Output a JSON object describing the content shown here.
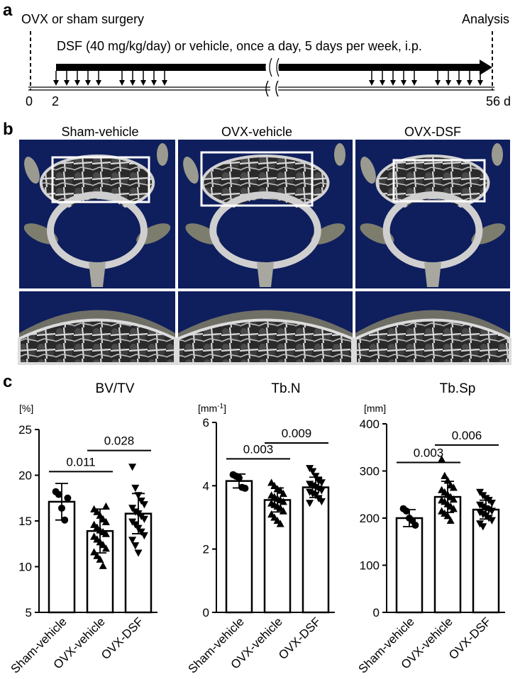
{
  "panels": {
    "a": "a",
    "b": "b",
    "c": "c"
  },
  "timeline": {
    "start_label": "OVX or sham surgery",
    "end_label": "Analysis",
    "treatment_label": "DSF (40 mg/kg/day) or vehicle, once a day, 5 days per week, i.p.",
    "tick_0": "0",
    "tick_2": "2",
    "tick_end": "56 d",
    "day_start": 0,
    "day_treat": 2,
    "day_end": 56
  },
  "images": {
    "groups": [
      "Sham-vehicle",
      "OVX-vehicle",
      "OVX-DSF"
    ],
    "background": "#0f1e5c",
    "bone_color": "#c8c8c8"
  },
  "colors": {
    "ink": "#000000",
    "bar_fill": "#ffffff"
  },
  "chart_data": [
    {
      "type": "bar",
      "title": "BV/TV",
      "unit": "[%]",
      "categories": [
        "Sham-vehicle",
        "OVX-vehicle",
        "OVX-DSF"
      ],
      "markers": [
        "circle",
        "triangle-up",
        "triangle-down"
      ],
      "values": [
        17.1,
        13.9,
        15.8
      ],
      "sd": [
        2.0,
        2.4,
        2.2
      ],
      "ylim": [
        5,
        25
      ],
      "yticks": [
        "5",
        "10",
        "15",
        "20",
        "25"
      ],
      "ytick_values": [
        5,
        10,
        15,
        20,
        25
      ],
      "points": [
        [
          18.2,
          17.9,
          16.4,
          15.1,
          17.5
        ],
        [
          16.3,
          16.0,
          15.6,
          15.2,
          14.9,
          14.6,
          14.3,
          14.0,
          13.8,
          13.6,
          13.3,
          13.0,
          12.7,
          12.4,
          12.0,
          11.6,
          11.2,
          10.8,
          10.1,
          16.6
        ],
        [
          20.9,
          18.6,
          17.8,
          17.2,
          16.8,
          16.4,
          16.0,
          15.8,
          15.5,
          15.2,
          14.9,
          14.6,
          14.2,
          13.8,
          13.4,
          12.9,
          12.3,
          11.5
        ]
      ],
      "comparisons": [
        {
          "from": 0,
          "to": 1,
          "label": "0.011",
          "y": 20.4
        },
        {
          "from": 1,
          "to": 2,
          "label": "0.028",
          "y": 22.7
        }
      ]
    },
    {
      "type": "bar",
      "title": "Tb.N",
      "unit": "[mm",
      "unit_sup": "-1",
      "unit_close": "]",
      "categories": [
        "Sham-vehicle",
        "OVX-vehicle",
        "OVX-DSF"
      ],
      "markers": [
        "circle",
        "triangle-up",
        "triangle-down"
      ],
      "values": [
        4.15,
        3.55,
        3.95
      ],
      "sd": [
        0.22,
        0.38,
        0.32
      ],
      "ylim": [
        0,
        6
      ],
      "yticks": [
        "0",
        "2",
        "4",
        "6"
      ],
      "ytick_values": [
        0,
        2,
        4,
        6
      ],
      "points": [
        [
          4.35,
          4.3,
          4.25,
          3.95,
          3.92
        ],
        [
          4.1,
          4.0,
          3.9,
          3.85,
          3.75,
          3.7,
          3.65,
          3.6,
          3.55,
          3.5,
          3.45,
          3.4,
          3.35,
          3.3,
          3.2,
          3.1,
          3.0,
          2.9,
          2.8
        ],
        [
          4.55,
          4.45,
          4.3,
          4.15,
          4.1,
          4.05,
          4.0,
          3.95,
          3.9,
          3.85,
          3.8,
          3.75,
          3.7,
          3.6,
          3.5,
          3.45
        ]
      ],
      "comparisons": [
        {
          "from": 0,
          "to": 1,
          "label": "0.003",
          "y": 4.85
        },
        {
          "from": 1,
          "to": 2,
          "label": "0.009",
          "y": 5.35
        }
      ]
    },
    {
      "type": "bar",
      "title": "Tb.Sp",
      "unit": "[mm]",
      "categories": [
        "Sham-vehicle",
        "OVX-vehicle",
        "OVX-DSF"
      ],
      "markers": [
        "circle",
        "triangle-up",
        "triangle-down"
      ],
      "values": [
        200,
        245,
        218
      ],
      "sd": [
        18,
        33,
        20
      ],
      "ylim": [
        0,
        400
      ],
      "yticks": [
        "0",
        "100",
        "200",
        "300",
        "400"
      ],
      "ytick_values": [
        0,
        100,
        200,
        300,
        400
      ],
      "points": [
        [
          220,
          215,
          200,
          195,
          185
        ],
        [
          325,
          290,
          280,
          270,
          265,
          260,
          255,
          250,
          245,
          240,
          238,
          235,
          230,
          225,
          220,
          215,
          210,
          205,
          195
        ],
        [
          255,
          248,
          242,
          238,
          232,
          228,
          224,
          220,
          218,
          215,
          212,
          208,
          205,
          200,
          195,
          188,
          182
        ]
      ],
      "comparisons": [
        {
          "from": 0,
          "to": 1,
          "label": "0.003",
          "y": 318
        },
        {
          "from": 1,
          "to": 2,
          "label": "0.006",
          "y": 355
        }
      ]
    }
  ]
}
